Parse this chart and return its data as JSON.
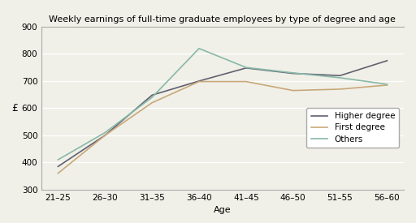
{
  "title": "Weekly earnings of full-time graduate employees by type of degree and age",
  "xlabel": "Age",
  "ylabel": "£",
  "x_labels": [
    "21–25",
    "26–30",
    "31–35",
    "36–40",
    "41–45",
    "46–50",
    "51–55",
    "56–60"
  ],
  "ylim": [
    300,
    900
  ],
  "yticks": [
    300,
    400,
    500,
    600,
    700,
    800,
    900
  ],
  "series": [
    {
      "label": "Higher degree",
      "color": "#606070",
      "values": [
        385,
        500,
        648,
        700,
        748,
        728,
        720,
        775
      ]
    },
    {
      "label": "First degree",
      "color": "#c8a878",
      "values": [
        360,
        500,
        620,
        698,
        698,
        665,
        670,
        685
      ]
    },
    {
      "label": "Others",
      "color": "#88b8a8",
      "values": [
        410,
        510,
        640,
        820,
        750,
        730,
        712,
        688
      ]
    }
  ],
  "background_color": "#f0f0e8",
  "grid_color": "#ffffff",
  "title_fontsize": 8,
  "axis_label_fontsize": 8,
  "tick_fontsize": 7.5,
  "legend_fontsize": 7.5
}
